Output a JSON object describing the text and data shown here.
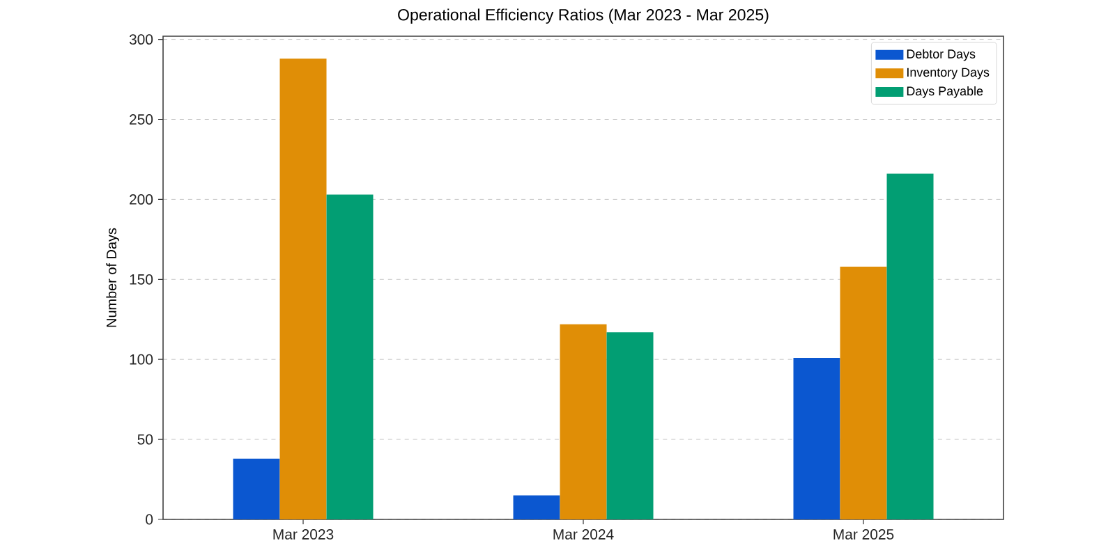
{
  "chart_data": {
    "type": "bar",
    "title": "Operational Efficiency Ratios (Mar 2023 - Mar 2025)",
    "ylabel": "Number of Days",
    "categories": [
      "Mar 2023",
      "Mar 2024",
      "Mar 2025"
    ],
    "series": [
      {
        "name": "Debtor Days",
        "color": "#0b57d0",
        "values": [
          38,
          15,
          101
        ]
      },
      {
        "name": "Inventory Days",
        "color": "#e08e06",
        "values": [
          288,
          122,
          158
        ]
      },
      {
        "name": "Days Payable",
        "color": "#029e73",
        "values": [
          203,
          117,
          216
        ]
      }
    ],
    "ylim": [
      0,
      302
    ],
    "yticks": [
      0,
      50,
      100,
      150,
      200,
      250,
      300
    ],
    "grid": "y",
    "legend": "top right"
  }
}
